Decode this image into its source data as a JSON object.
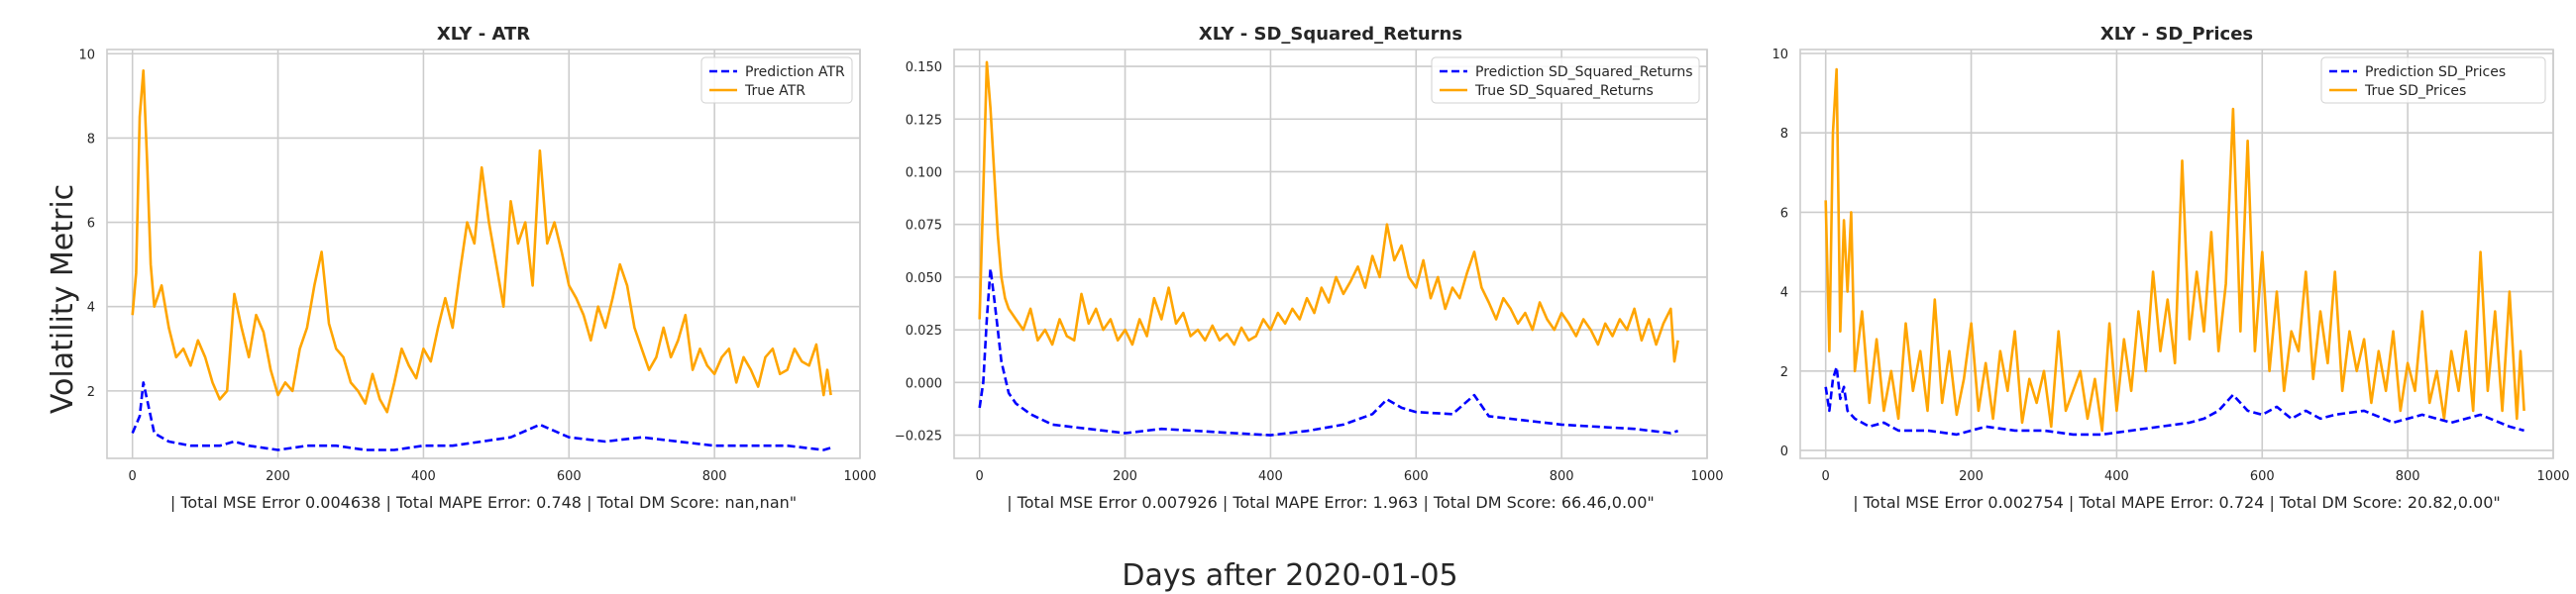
{
  "figure": {
    "ylabel": "Volatility Metric",
    "xlabel": "Days after 2020-01-05"
  },
  "chart_data": [
    {
      "type": "line",
      "title": "XLY - ATR",
      "xlabel": "| Total MSE Error 0.004638 | Total MAPE Error: 0.748 | Total DM Score: nan,nan\"",
      "xlim": [
        -35,
        1000
      ],
      "ylim": [
        0.4,
        10.1
      ],
      "xticks": [
        0,
        200,
        400,
        600,
        800,
        1000
      ],
      "xtick_labels": [
        "0",
        "200",
        "400",
        "600",
        "800",
        "1000"
      ],
      "yticks": [
        2,
        4,
        6,
        8,
        10
      ],
      "ytick_labels": [
        "2",
        "4",
        "6",
        "8",
        "10"
      ],
      "grid": true,
      "legend": "top-right",
      "series": [
        {
          "name": "Prediction ATR",
          "color": "#0000ff",
          "style": "dashed",
          "x": [
            0,
            10,
            15,
            20,
            30,
            50,
            80,
            120,
            140,
            160,
            200,
            240,
            280,
            320,
            360,
            400,
            440,
            480,
            520,
            560,
            600,
            650,
            700,
            750,
            800,
            850,
            900,
            950,
            960
          ],
          "y": [
            1.0,
            1.4,
            2.2,
            1.8,
            1.0,
            0.8,
            0.7,
            0.7,
            0.8,
            0.7,
            0.6,
            0.7,
            0.7,
            0.6,
            0.6,
            0.7,
            0.7,
            0.8,
            0.9,
            1.2,
            0.9,
            0.8,
            0.9,
            0.8,
            0.7,
            0.7,
            0.7,
            0.6,
            0.65
          ]
        },
        {
          "name": "True ATR",
          "color": "#ffa500",
          "style": "solid",
          "x": [
            0,
            5,
            10,
            15,
            20,
            25,
            30,
            40,
            50,
            60,
            70,
            80,
            90,
            100,
            110,
            120,
            130,
            140,
            150,
            160,
            170,
            180,
            190,
            200,
            210,
            220,
            230,
            240,
            250,
            260,
            270,
            280,
            290,
            300,
            310,
            320,
            330,
            340,
            350,
            360,
            370,
            380,
            390,
            400,
            410,
            420,
            430,
            440,
            450,
            460,
            470,
            480,
            490,
            500,
            510,
            520,
            530,
            540,
            550,
            560,
            570,
            580,
            590,
            600,
            610,
            620,
            630,
            640,
            650,
            660,
            670,
            680,
            690,
            700,
            710,
            720,
            730,
            740,
            750,
            760,
            770,
            780,
            790,
            800,
            810,
            820,
            830,
            840,
            850,
            860,
            870,
            880,
            890,
            900,
            910,
            920,
            930,
            940,
            950,
            955,
            960
          ],
          "y": [
            3.8,
            4.8,
            8.5,
            9.6,
            7.5,
            5.0,
            4.0,
            4.5,
            3.5,
            2.8,
            3.0,
            2.6,
            3.2,
            2.8,
            2.2,
            1.8,
            2.0,
            4.3,
            3.5,
            2.8,
            3.8,
            3.4,
            2.5,
            1.9,
            2.2,
            2.0,
            3.0,
            3.5,
            4.5,
            5.3,
            3.6,
            3.0,
            2.8,
            2.2,
            2.0,
            1.7,
            2.4,
            1.8,
            1.5,
            2.2,
            3.0,
            2.6,
            2.3,
            3.0,
            2.7,
            3.5,
            4.2,
            3.5,
            4.8,
            6.0,
            5.5,
            7.3,
            6.0,
            5.0,
            4.0,
            6.5,
            5.5,
            6.0,
            4.5,
            7.7,
            5.5,
            6.0,
            5.3,
            4.5,
            4.2,
            3.8,
            3.2,
            4.0,
            3.5,
            4.2,
            5.0,
            4.5,
            3.5,
            3.0,
            2.5,
            2.8,
            3.5,
            2.8,
            3.2,
            3.8,
            2.5,
            3.0,
            2.6,
            2.4,
            2.8,
            3.0,
            2.2,
            2.8,
            2.5,
            2.1,
            2.8,
            3.0,
            2.4,
            2.5,
            3.0,
            2.7,
            2.6,
            3.1,
            1.9,
            2.5,
            1.9
          ]
        }
      ]
    },
    {
      "type": "line",
      "title": "XLY - SD_Squared_Returns",
      "xlabel": "| Total MSE Error 0.007926 | Total MAPE Error: 1.963 | Total DM Score: 66.46,0.00\"",
      "xlim": [
        -35,
        1000
      ],
      "ylim": [
        -0.036,
        0.158
      ],
      "xticks": [
        0,
        200,
        400,
        600,
        800,
        1000
      ],
      "xtick_labels": [
        "0",
        "200",
        "400",
        "600",
        "800",
        "1000"
      ],
      "yticks": [
        -0.025,
        0.0,
        0.025,
        0.05,
        0.075,
        0.1,
        0.125,
        0.15
      ],
      "ytick_labels": [
        "−0.025",
        "0.000",
        "0.025",
        "0.050",
        "0.075",
        "0.100",
        "0.125",
        "0.150"
      ],
      "grid": true,
      "legend": "top-right",
      "series": [
        {
          "name": "Prediction SD_Squared_Returns",
          "color": "#0000ff",
          "style": "dashed",
          "x": [
            0,
            5,
            10,
            15,
            20,
            25,
            30,
            40,
            50,
            70,
            100,
            150,
            200,
            250,
            300,
            350,
            400,
            450,
            500,
            540,
            560,
            580,
            600,
            650,
            680,
            700,
            750,
            800,
            850,
            900,
            950,
            960
          ],
          "y": [
            -0.012,
            0.0,
            0.03,
            0.054,
            0.04,
            0.025,
            0.01,
            -0.005,
            -0.01,
            -0.015,
            -0.02,
            -0.022,
            -0.024,
            -0.022,
            -0.023,
            -0.024,
            -0.025,
            -0.023,
            -0.02,
            -0.015,
            -0.008,
            -0.012,
            -0.014,
            -0.015,
            -0.006,
            -0.016,
            -0.018,
            -0.02,
            -0.021,
            -0.022,
            -0.024,
            -0.023
          ]
        },
        {
          "name": "True SD_Squared_Returns",
          "color": "#ffa500",
          "style": "solid",
          "x": [
            0,
            5,
            10,
            15,
            20,
            25,
            30,
            35,
            40,
            50,
            60,
            70,
            80,
            90,
            100,
            110,
            120,
            130,
            140,
            150,
            160,
            170,
            180,
            190,
            200,
            210,
            220,
            230,
            240,
            250,
            260,
            270,
            280,
            290,
            300,
            310,
            320,
            330,
            340,
            350,
            360,
            370,
            380,
            390,
            400,
            410,
            420,
            430,
            440,
            450,
            460,
            470,
            480,
            490,
            500,
            510,
            520,
            530,
            540,
            550,
            560,
            570,
            580,
            590,
            600,
            610,
            620,
            630,
            640,
            650,
            660,
            670,
            680,
            690,
            700,
            710,
            720,
            730,
            740,
            750,
            760,
            770,
            780,
            790,
            800,
            810,
            820,
            830,
            840,
            850,
            860,
            870,
            880,
            890,
            900,
            910,
            920,
            930,
            940,
            950,
            955,
            960
          ],
          "y": [
            0.03,
            0.09,
            0.152,
            0.13,
            0.1,
            0.07,
            0.05,
            0.04,
            0.035,
            0.03,
            0.025,
            0.035,
            0.02,
            0.025,
            0.018,
            0.03,
            0.022,
            0.02,
            0.042,
            0.028,
            0.035,
            0.025,
            0.03,
            0.02,
            0.025,
            0.018,
            0.03,
            0.022,
            0.04,
            0.03,
            0.045,
            0.028,
            0.033,
            0.022,
            0.025,
            0.02,
            0.027,
            0.02,
            0.023,
            0.018,
            0.026,
            0.02,
            0.022,
            0.03,
            0.025,
            0.033,
            0.028,
            0.035,
            0.03,
            0.04,
            0.033,
            0.045,
            0.038,
            0.05,
            0.042,
            0.048,
            0.055,
            0.045,
            0.06,
            0.05,
            0.075,
            0.058,
            0.065,
            0.05,
            0.045,
            0.058,
            0.04,
            0.05,
            0.035,
            0.045,
            0.04,
            0.052,
            0.062,
            0.045,
            0.038,
            0.03,
            0.04,
            0.035,
            0.028,
            0.033,
            0.025,
            0.038,
            0.03,
            0.025,
            0.033,
            0.028,
            0.022,
            0.03,
            0.025,
            0.018,
            0.028,
            0.022,
            0.03,
            0.025,
            0.035,
            0.02,
            0.03,
            0.018,
            0.028,
            0.035,
            0.01,
            0.02
          ]
        }
      ]
    },
    {
      "type": "line",
      "title": "XLY - SD_Prices",
      "xlabel": "| Total MSE Error 0.002754 | Total MAPE Error: 0.724 | Total DM Score: 20.82,0.00\"",
      "xlim": [
        -35,
        1000
      ],
      "ylim": [
        -0.2,
        10.1
      ],
      "xticks": [
        0,
        200,
        400,
        600,
        800,
        1000
      ],
      "xtick_labels": [
        "0",
        "200",
        "400",
        "600",
        "800",
        "1000"
      ],
      "yticks": [
        0,
        2,
        4,
        6,
        8,
        10
      ],
      "ytick_labels": [
        "0",
        "2",
        "4",
        "6",
        "8",
        "10"
      ],
      "grid": true,
      "legend": "top-right",
      "series": [
        {
          "name": "Prediction SD_Prices",
          "color": "#0000ff",
          "style": "dashed",
          "x": [
            0,
            5,
            10,
            15,
            20,
            25,
            30,
            40,
            60,
            80,
            100,
            140,
            180,
            220,
            260,
            300,
            340,
            380,
            420,
            460,
            500,
            520,
            540,
            560,
            580,
            600,
            620,
            640,
            660,
            680,
            700,
            740,
            780,
            820,
            860,
            900,
            940,
            960
          ],
          "y": [
            1.6,
            1.0,
            1.8,
            2.1,
            1.3,
            1.6,
            1.0,
            0.8,
            0.6,
            0.7,
            0.5,
            0.5,
            0.4,
            0.6,
            0.5,
            0.5,
            0.4,
            0.4,
            0.5,
            0.6,
            0.7,
            0.8,
            1.0,
            1.4,
            1.0,
            0.9,
            1.1,
            0.8,
            1.0,
            0.8,
            0.9,
            1.0,
            0.7,
            0.9,
            0.7,
            0.9,
            0.6,
            0.5
          ]
        },
        {
          "name": "True SD_Prices",
          "color": "#ffa500",
          "style": "solid",
          "x": [
            0,
            5,
            10,
            15,
            20,
            25,
            30,
            35,
            40,
            50,
            60,
            70,
            80,
            90,
            100,
            110,
            120,
            130,
            140,
            150,
            160,
            170,
            180,
            190,
            200,
            210,
            220,
            230,
            240,
            250,
            260,
            270,
            280,
            290,
            300,
            310,
            320,
            330,
            340,
            350,
            360,
            370,
            380,
            390,
            400,
            410,
            420,
            430,
            440,
            450,
            460,
            470,
            480,
            490,
            500,
            510,
            520,
            530,
            540,
            550,
            560,
            570,
            580,
            590,
            600,
            610,
            620,
            630,
            640,
            650,
            660,
            670,
            680,
            690,
            700,
            710,
            720,
            730,
            740,
            750,
            760,
            770,
            780,
            790,
            800,
            810,
            820,
            830,
            840,
            850,
            860,
            870,
            880,
            890,
            900,
            910,
            920,
            930,
            940,
            950,
            955,
            960
          ],
          "y": [
            6.3,
            2.5,
            8.0,
            9.6,
            3.0,
            5.8,
            4.0,
            6.0,
            2.0,
            3.5,
            1.2,
            2.8,
            1.0,
            2.0,
            0.8,
            3.2,
            1.5,
            2.5,
            1.0,
            3.8,
            1.2,
            2.5,
            0.9,
            1.8,
            3.2,
            1.0,
            2.2,
            0.8,
            2.5,
            1.5,
            3.0,
            0.7,
            1.8,
            1.2,
            2.0,
            0.6,
            3.0,
            1.0,
            1.5,
            2.0,
            0.8,
            1.8,
            0.5,
            3.2,
            1.0,
            2.8,
            1.5,
            3.5,
            2.0,
            4.5,
            2.5,
            3.8,
            2.2,
            7.3,
            2.8,
            4.5,
            3.0,
            5.5,
            2.5,
            4.2,
            8.6,
            3.0,
            7.8,
            2.5,
            5.0,
            2.0,
            4.0,
            1.5,
            3.0,
            2.5,
            4.5,
            1.8,
            3.5,
            2.2,
            4.5,
            1.5,
            3.0,
            2.0,
            2.8,
            1.2,
            2.5,
            1.5,
            3.0,
            1.0,
            2.2,
            1.5,
            3.5,
            1.2,
            2.0,
            0.8,
            2.5,
            1.5,
            3.0,
            1.0,
            5.0,
            1.5,
            3.5,
            1.0,
            4.0,
            0.8,
            2.5,
            1.0
          ]
        }
      ]
    }
  ]
}
